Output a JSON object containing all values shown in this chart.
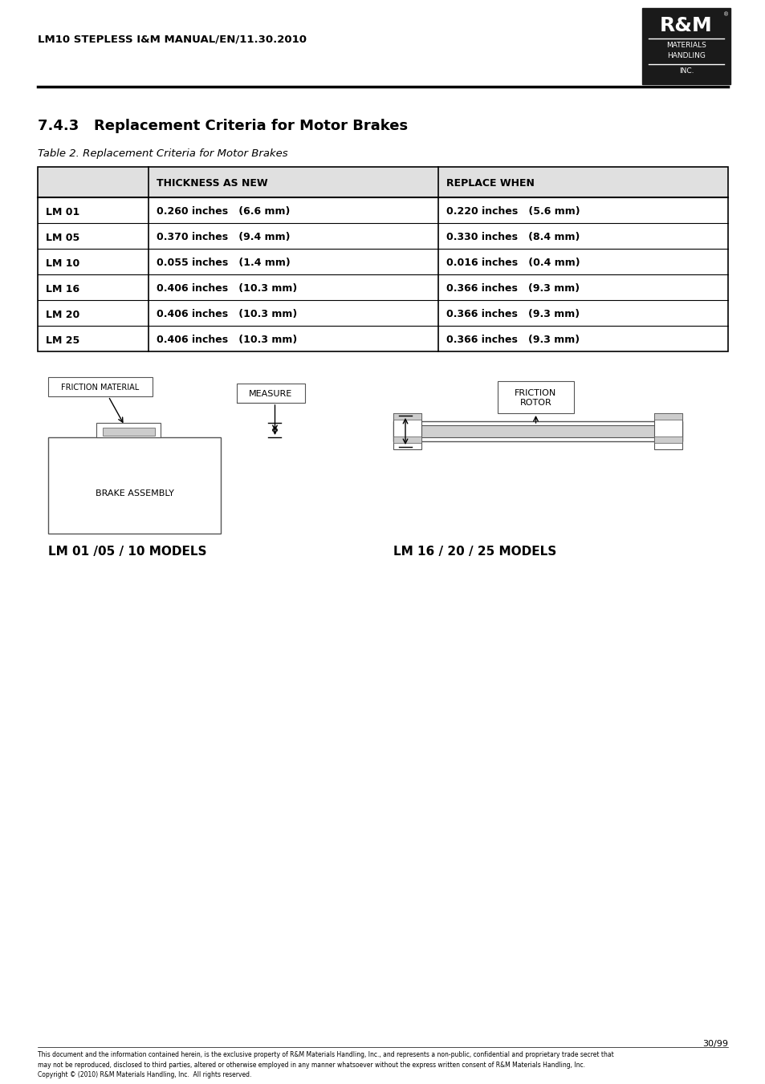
{
  "header_text": "LM10 STEPLESS I&M MANUAL/EN/11.30.2010",
  "section_title": "7.4.3   Replacement Criteria for Motor Brakes",
  "table_caption": "Table 2. Replacement Criteria for Motor Brakes",
  "table_headers": [
    "",
    "THICKNESS AS NEW",
    "REPLACE WHEN"
  ],
  "table_rows": [
    [
      "LM 01",
      "0.260 inches   (6.6 mm)",
      "0.220 inches   (5.6 mm)"
    ],
    [
      "LM 05",
      "0.370 inches   (9.4 mm)",
      "0.330 inches   (8.4 mm)"
    ],
    [
      "LM 10",
      "0.055 inches   (1.4 mm)",
      "0.016 inches   (0.4 mm)"
    ],
    [
      "LM 16",
      "0.406 inches   (10.3 mm)",
      "0.366 inches   (9.3 mm)"
    ],
    [
      "LM 20",
      "0.406 inches   (10.3 mm)",
      "0.366 inches   (9.3 mm)"
    ],
    [
      "LM 25",
      "0.406 inches   (10.3 mm)",
      "0.366 inches   (9.3 mm)"
    ]
  ],
  "diagram_label_left": "LM 01 /05 / 10 MODELS",
  "diagram_label_right": "LM 16 / 20 / 25 MODELS",
  "diagram_text_friction_material": "FRICTION MATERIAL",
  "diagram_text_brake_assembly": "BRAKE ASSEMBLY",
  "diagram_text_measure": "MEASURE",
  "diagram_text_friction_rotor": "FRICTION\nROTOR",
  "footer_page": "30/99",
  "footer_text": "This document and the information contained herein, is the exclusive property of R&M Materials Handling, Inc., and represents a non-public, confidential and proprietary trade secret that\nmay not be reproduced, disclosed to third parties, altered or otherwise employed in any manner whatsoever without the express written consent of R&M Materials Handling, Inc.\nCopyright © (2010) R&M Materials Handling, Inc.  All rights reserved.",
  "logo_text_lines": [
    "R&M",
    "MATERIALS",
    "HANDLING",
    "INC."
  ],
  "bg_color": "#ffffff",
  "text_color": "#000000",
  "table_header_bg": "#e8e8e8"
}
